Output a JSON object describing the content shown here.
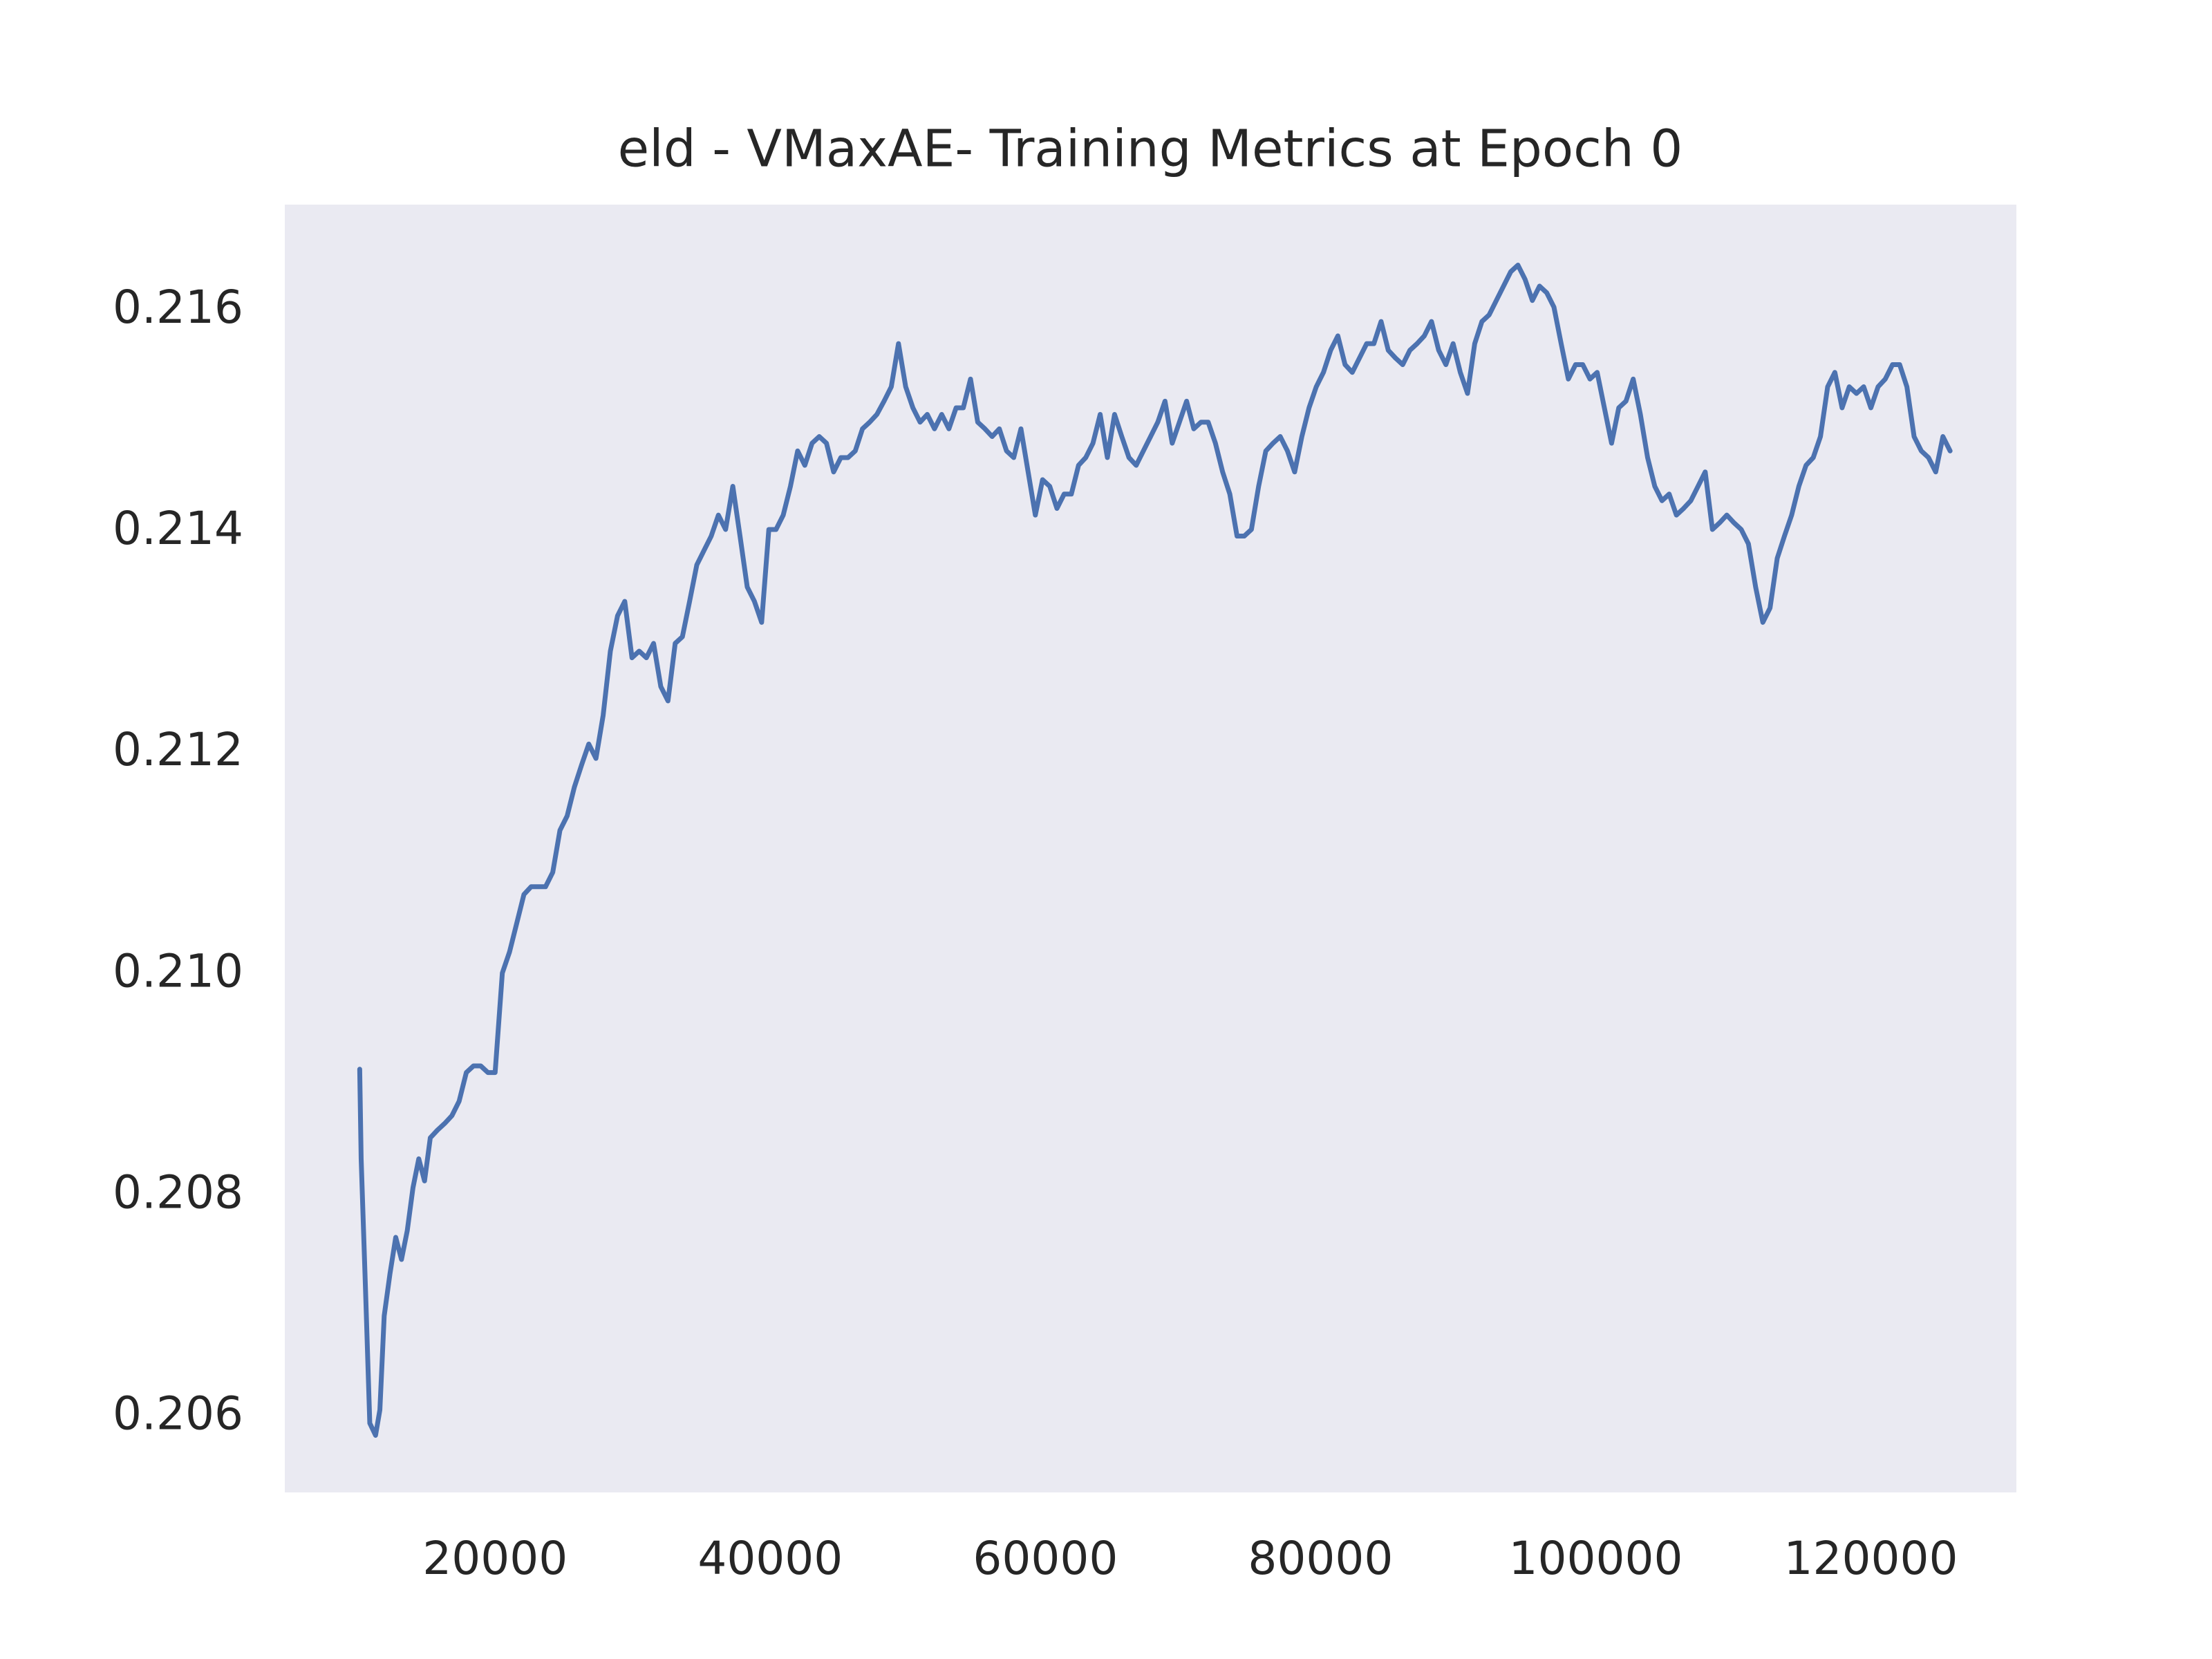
{
  "chart_data": {
    "type": "line",
    "title": "eld - VMaxAE- Training Metrics at Epoch 0",
    "color": "#4c72b0",
    "grid": false,
    "x": [
      10157,
      10262,
      10576,
      10890,
      11309,
      11623,
      11937,
      12356,
      12775,
      13194,
      13613,
      14031,
      14450,
      14869,
      15288,
      15812,
      16335,
      16859,
      17382,
      17906,
      18429,
      18953,
      19476,
      20000,
      20524,
      21047,
      21571,
      22094,
      22618,
      23141,
      23665,
      24188,
      24712,
      25236,
      25759,
      26283,
      26806,
      27330,
      27853,
      28377,
      28900,
      29424,
      29948,
      30471,
      30995,
      31518,
      32042,
      32565,
      33089,
      33612,
      34136,
      34660,
      35183,
      35707,
      36230,
      36754,
      37277,
      37801,
      38325,
      38848,
      39372,
      39895,
      40419,
      40942,
      41466,
      41990,
      42513,
      43037,
      43560,
      44084,
      44607,
      45131,
      45654,
      46178,
      46702,
      47225,
      47749,
      48272,
      48796,
      49319,
      49843,
      50366,
      50890,
      51414,
      51937,
      52461,
      52984,
      53508,
      54031,
      54555,
      55079,
      55602,
      56126,
      56649,
      57173,
      57696,
      58220,
      58743,
      59267,
      59791,
      60314,
      60838,
      61361,
      61885,
      62408,
      62932,
      63455,
      63979,
      64503,
      65026,
      65550,
      66073,
      66597,
      67120,
      67644,
      68168,
      68691,
      69215,
      69738,
      70262,
      70785,
      71309,
      71832,
      72356,
      72880,
      73403,
      73927,
      74450,
      74974,
      75497,
      76021,
      76545,
      77068,
      77592,
      78115,
      78639,
      79162,
      79686,
      80209,
      80733,
      81257,
      81780,
      82304,
      82827,
      83351,
      83874,
      84398,
      84921,
      85445,
      85969,
      86492,
      87016,
      87539,
      88063,
      88586,
      89110,
      89634,
      90157,
      90681,
      91204,
      91728,
      92251,
      92775,
      93298,
      93822,
      94346,
      94869,
      95393,
      95916,
      96440,
      96963,
      97487,
      98010,
      98534,
      99058,
      99581,
      100105,
      100628,
      101152,
      101675,
      102199,
      102723,
      103246,
      103770,
      104293,
      104817,
      105340,
      105864,
      106387,
      106911,
      107435,
      107958,
      108482,
      109005,
      109529,
      110052,
      110576,
      111099,
      111623,
      112147,
      112670,
      113194,
      113717,
      114241,
      114764,
      115288,
      115812,
      116335,
      116859,
      117382,
      117906,
      118429,
      118953,
      119476,
      120000,
      120524,
      121047,
      121571,
      122094,
      122618,
      123141,
      123665,
      124188,
      124712,
      125236,
      125759
    ],
    "values": [
      0.20914,
      0.20833,
      0.20716,
      0.20594,
      0.20583,
      0.20606,
      0.20691,
      0.20729,
      0.20762,
      0.20742,
      0.20768,
      0.20807,
      0.20833,
      0.20813,
      0.20852,
      0.20859,
      0.20865,
      0.20872,
      0.20885,
      0.20911,
      0.20917,
      0.20917,
      0.20911,
      0.20911,
      0.21001,
      0.2102,
      0.21046,
      0.21072,
      0.21079,
      0.21079,
      0.21079,
      0.21092,
      0.2113,
      0.21143,
      0.21169,
      0.21189,
      0.21208,
      0.21195,
      0.21234,
      0.21292,
      0.21324,
      0.21337,
      0.21286,
      0.21292,
      0.21286,
      0.21299,
      0.2126,
      0.21247,
      0.21299,
      0.21305,
      0.21337,
      0.2137,
      0.21383,
      0.21396,
      0.21415,
      0.21402,
      0.21441,
      0.21396,
      0.2135,
      0.21337,
      0.21318,
      0.21402,
      0.21402,
      0.21415,
      0.21441,
      0.21473,
      0.2146,
      0.2148,
      0.21486,
      0.2148,
      0.21454,
      0.21467,
      0.21467,
      0.21473,
      0.21493,
      0.21499,
      0.21506,
      0.21518,
      0.21531,
      0.2157,
      0.21531,
      0.21512,
      0.21499,
      0.21506,
      0.21493,
      0.21506,
      0.21493,
      0.21512,
      0.21512,
      0.21538,
      0.21499,
      0.21493,
      0.21486,
      0.21493,
      0.21473,
      0.21467,
      0.21493,
      0.21454,
      0.21415,
      0.21447,
      0.21441,
      0.21421,
      0.21434,
      0.21434,
      0.2146,
      0.21467,
      0.2148,
      0.21506,
      0.21467,
      0.21506,
      0.21486,
      0.21467,
      0.2146,
      0.21473,
      0.21486,
      0.21499,
      0.21518,
      0.2148,
      0.21499,
      0.21518,
      0.21493,
      0.21499,
      0.21499,
      0.2148,
      0.21454,
      0.21434,
      0.21396,
      0.21396,
      0.21402,
      0.21441,
      0.21473,
      0.2148,
      0.21486,
      0.21473,
      0.21454,
      0.21486,
      0.21512,
      0.21531,
      0.21544,
      0.21564,
      0.21577,
      0.21551,
      0.21544,
      0.21557,
      0.2157,
      0.2157,
      0.2159,
      0.21564,
      0.21557,
      0.21551,
      0.21564,
      0.2157,
      0.21577,
      0.2159,
      0.21564,
      0.21551,
      0.2157,
      0.21544,
      0.21525,
      0.2157,
      0.2159,
      0.21596,
      0.21609,
      0.21622,
      0.21635,
      0.21641,
      0.21628,
      0.21609,
      0.21622,
      0.21616,
      0.21603,
      0.2157,
      0.21538,
      0.21551,
      0.21551,
      0.21538,
      0.21544,
      0.21512,
      0.2148,
      0.21512,
      0.21518,
      0.21538,
      0.21506,
      0.21467,
      0.21441,
      0.21428,
      0.21434,
      0.21415,
      0.21421,
      0.21428,
      0.21441,
      0.21454,
      0.21402,
      0.21408,
      0.21415,
      0.21408,
      0.21402,
      0.21389,
      0.2135,
      0.21318,
      0.21331,
      0.21376,
      0.21396,
      0.21415,
      0.21441,
      0.2146,
      0.21467,
      0.21486,
      0.21531,
      0.21544,
      0.21512,
      0.21531,
      0.21525,
      0.21531,
      0.21512,
      0.21531,
      0.21538,
      0.21551,
      0.21551,
      0.21531,
      0.21486,
      0.21473,
      0.21467,
      0.21454,
      0.21486,
      0.21473
    ],
    "xlim": [
      4712,
      130576
    ],
    "xticks": [
      20000,
      40000,
      60000,
      80000,
      100000,
      120000
    ],
    "ylim": [
      0.205314,
      0.216957
    ],
    "yticks": [
      0.206,
      0.208,
      {
        "value": 0.21,
        "label": "0.210"
      },
      0.212,
      0.214,
      0.216
    ]
  }
}
